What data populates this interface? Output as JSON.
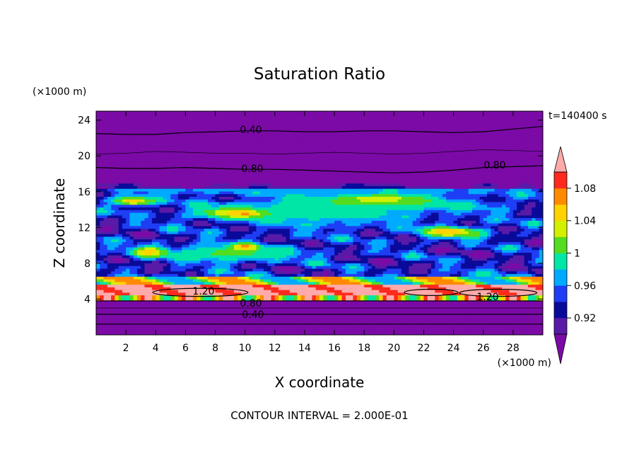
{
  "chart_data": {
    "type": "heatmap",
    "title": "Saturation Ratio",
    "xlabel": "X coordinate",
    "ylabel": "Z coordinate",
    "x_unit": "(×1000 m)",
    "y_unit": "(×1000 m)",
    "time_label": "t=140400 s",
    "footer": "CONTOUR INTERVAL = 2.000E-01",
    "xlim": [
      0,
      30
    ],
    "ylim": [
      0,
      25
    ],
    "x_ticks": [
      "2",
      "4",
      "6",
      "8",
      "10",
      "12",
      "14",
      "16",
      "18",
      "20",
      "22",
      "24",
      "26",
      "28"
    ],
    "x_tick_values": [
      2,
      4,
      6,
      8,
      10,
      12,
      14,
      16,
      18,
      20,
      22,
      24,
      26,
      28
    ],
    "y_ticks": [
      "4",
      "8",
      "12",
      "16",
      "20",
      "24"
    ],
    "y_tick_values": [
      4,
      8,
      12,
      16,
      20,
      24
    ],
    "colorbar": {
      "labels": [
        "1.08",
        "1.04",
        "1",
        "0.96",
        "0.92"
      ],
      "label_values": [
        1.08,
        1.04,
        1.0,
        0.96,
        0.92
      ],
      "range": [
        0.9,
        1.1
      ],
      "bins": [
        {
          "from": 0.9,
          "to": 0.92,
          "color": "#5a1aa8"
        },
        {
          "from": 0.92,
          "to": 0.94,
          "color": "#0a0a9a"
        },
        {
          "from": 0.94,
          "to": 0.96,
          "color": "#1e3ef5"
        },
        {
          "from": 0.96,
          "to": 0.98,
          "color": "#00aaff"
        },
        {
          "from": 0.98,
          "to": 1.0,
          "color": "#00e6a6"
        },
        {
          "from": 1.0,
          "to": 1.02,
          "color": "#54dc1e"
        },
        {
          "from": 1.02,
          "to": 1.04,
          "color": "#d2f000"
        },
        {
          "from": 1.04,
          "to": 1.06,
          "color": "#ffd200"
        },
        {
          "from": 1.06,
          "to": 1.08,
          "color": "#ff8a00"
        },
        {
          "from": 1.08,
          "to": 1.1,
          "color": "#ff2a1e"
        }
      ],
      "under_color": "#7b0aa6",
      "over_color": "#ffaaaa"
    },
    "contour_labels": [
      "0.40",
      "0.80",
      "0.80",
      "1.20",
      "0.80",
      "0.40",
      "1.20"
    ],
    "contours": [
      {
        "label_index": 0,
        "value": 0.4,
        "z": [
          22.5,
          22.4,
          22.4,
          22.6,
          22.7,
          22.8,
          22.8,
          22.7,
          22.7,
          22.8,
          22.8,
          22.7,
          22.6,
          22.7,
          23.0,
          23.3
        ]
      },
      {
        "label_index": 1,
        "value": 0.8,
        "z": [
          18.7,
          18.6,
          18.6,
          18.7,
          18.6,
          18.5,
          18.5,
          18.4,
          18.3,
          18.2,
          18.1,
          18.2,
          18.4,
          18.7,
          18.8,
          18.9
        ]
      },
      {
        "label_index": -1,
        "value": 0.6,
        "z": [
          20.2,
          20.3,
          20.5,
          20.4,
          20.3,
          20.3,
          20.2,
          20.3,
          20.4,
          20.3,
          20.2,
          20.3,
          20.5,
          20.7,
          20.6,
          20.5
        ]
      },
      {
        "label_index": 4,
        "value": 0.8,
        "z": [
          3.8,
          3.8,
          3.8,
          3.8,
          3.8,
          3.8,
          3.8,
          3.8,
          3.8,
          3.8,
          3.8,
          3.8,
          3.8,
          3.8,
          3.8,
          3.8
        ]
      },
      {
        "label_index": 5,
        "value": 0.4,
        "z": [
          2.3,
          2.3,
          2.3,
          2.3,
          2.3,
          2.3,
          2.3,
          2.3,
          2.3,
          2.3,
          2.3,
          2.3,
          2.3,
          2.3,
          2.3,
          2.3
        ]
      },
      {
        "label_index": -1,
        "value": 0.6,
        "z": [
          3.0,
          3.0,
          3.0,
          3.0,
          3.0,
          3.0,
          3.0,
          3.0,
          3.0,
          3.0,
          3.0,
          3.0,
          3.0,
          3.0,
          3.0,
          3.0
        ]
      },
      {
        "label_index": -1,
        "value": 0.2,
        "z": [
          1.2,
          1.2,
          1.2,
          1.2,
          1.2,
          1.2,
          1.2,
          1.2,
          1.2,
          1.2,
          1.2,
          1.2,
          1.2,
          1.2,
          1.2,
          1.2
        ]
      }
    ],
    "blobs": [
      {
        "value": 1.01,
        "x": 9,
        "z": 9.2,
        "rx": 5,
        "rz": 1.0
      },
      {
        "value": 1.05,
        "x": 3.5,
        "z": 9.3,
        "rx": 1.2,
        "rz": 0.6
      },
      {
        "value": 1.07,
        "x": 10,
        "z": 9.9,
        "rx": 0.8,
        "rz": 0.35
      },
      {
        "value": 0.99,
        "x": 15,
        "z": 13.6,
        "rx": 7,
        "rz": 1.6
      },
      {
        "value": 1.04,
        "x": 9,
        "z": 13.7,
        "rx": 2.5,
        "rz": 0.6
      },
      {
        "value": 1.07,
        "x": 10,
        "z": 13.6,
        "rx": 0.9,
        "rz": 0.35
      },
      {
        "value": 1.03,
        "x": 24,
        "z": 11.5,
        "rx": 2.5,
        "rz": 0.7
      },
      {
        "value": 1.06,
        "x": 23.5,
        "z": 11.6,
        "rx": 1.0,
        "rz": 0.35
      },
      {
        "value": 1.05,
        "x": 2.5,
        "z": 15.0,
        "rx": 1.5,
        "rz": 0.6
      },
      {
        "value": 1.0,
        "x": 19,
        "z": 14.7,
        "rx": 8,
        "rz": 1.0
      },
      {
        "value": 1.04,
        "x": 19,
        "z": 15.3,
        "rx": 2.5,
        "rz": 0.5
      },
      {
        "value": 0.98,
        "x": 15,
        "z": 16.2,
        "rx": 15,
        "rz": 0.5
      },
      {
        "value": 1.03,
        "x": 5,
        "z": 6.0,
        "rx": 3.5,
        "rz": 0.6
      },
      {
        "value": 1.03,
        "x": 23.5,
        "z": 5.9,
        "rx": 4,
        "rz": 0.7
      },
      {
        "value": 1.07,
        "x": 22,
        "z": 5.4,
        "rx": 2.5,
        "rz": 0.5
      }
    ]
  }
}
